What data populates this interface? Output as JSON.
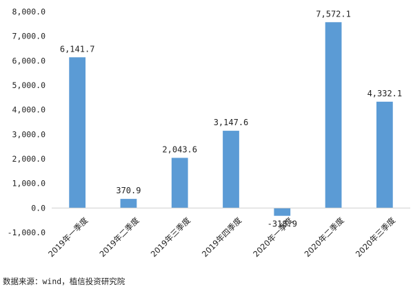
{
  "chart_data": {
    "type": "bar",
    "categories": [
      "2019年一季度",
      "2019年二季度",
      "2019年三季度",
      "2019年四季度",
      "2020年一季度",
      "2020年二季度",
      "2020年三季度"
    ],
    "values": [
      6141.7,
      370.9,
      2043.6,
      3147.6,
      -318.9,
      7572.1,
      4332.1
    ],
    "data_labels": [
      "6,141.7",
      "370.9",
      "2,043.6",
      "3,147.6",
      "-318.9",
      "7,572.1",
      "4,332.1"
    ],
    "y_ticks": [
      8000,
      7000,
      6000,
      5000,
      4000,
      3000,
      2000,
      1000,
      0,
      -1000
    ],
    "y_tick_labels": [
      "8,000.0",
      "7,000.0",
      "6,000.0",
      "5,000.0",
      "4,000.0",
      "3,000.0",
      "2,000.0",
      "1,000.0",
      "0.0",
      "-1,000.0"
    ],
    "ylim": [
      -1000,
      8000
    ],
    "title": "",
    "xlabel": "",
    "ylabel": "",
    "grid": false,
    "bar_color": "#5B9BD5"
  },
  "source_note": "数据来源：wind，植信投资研究院"
}
